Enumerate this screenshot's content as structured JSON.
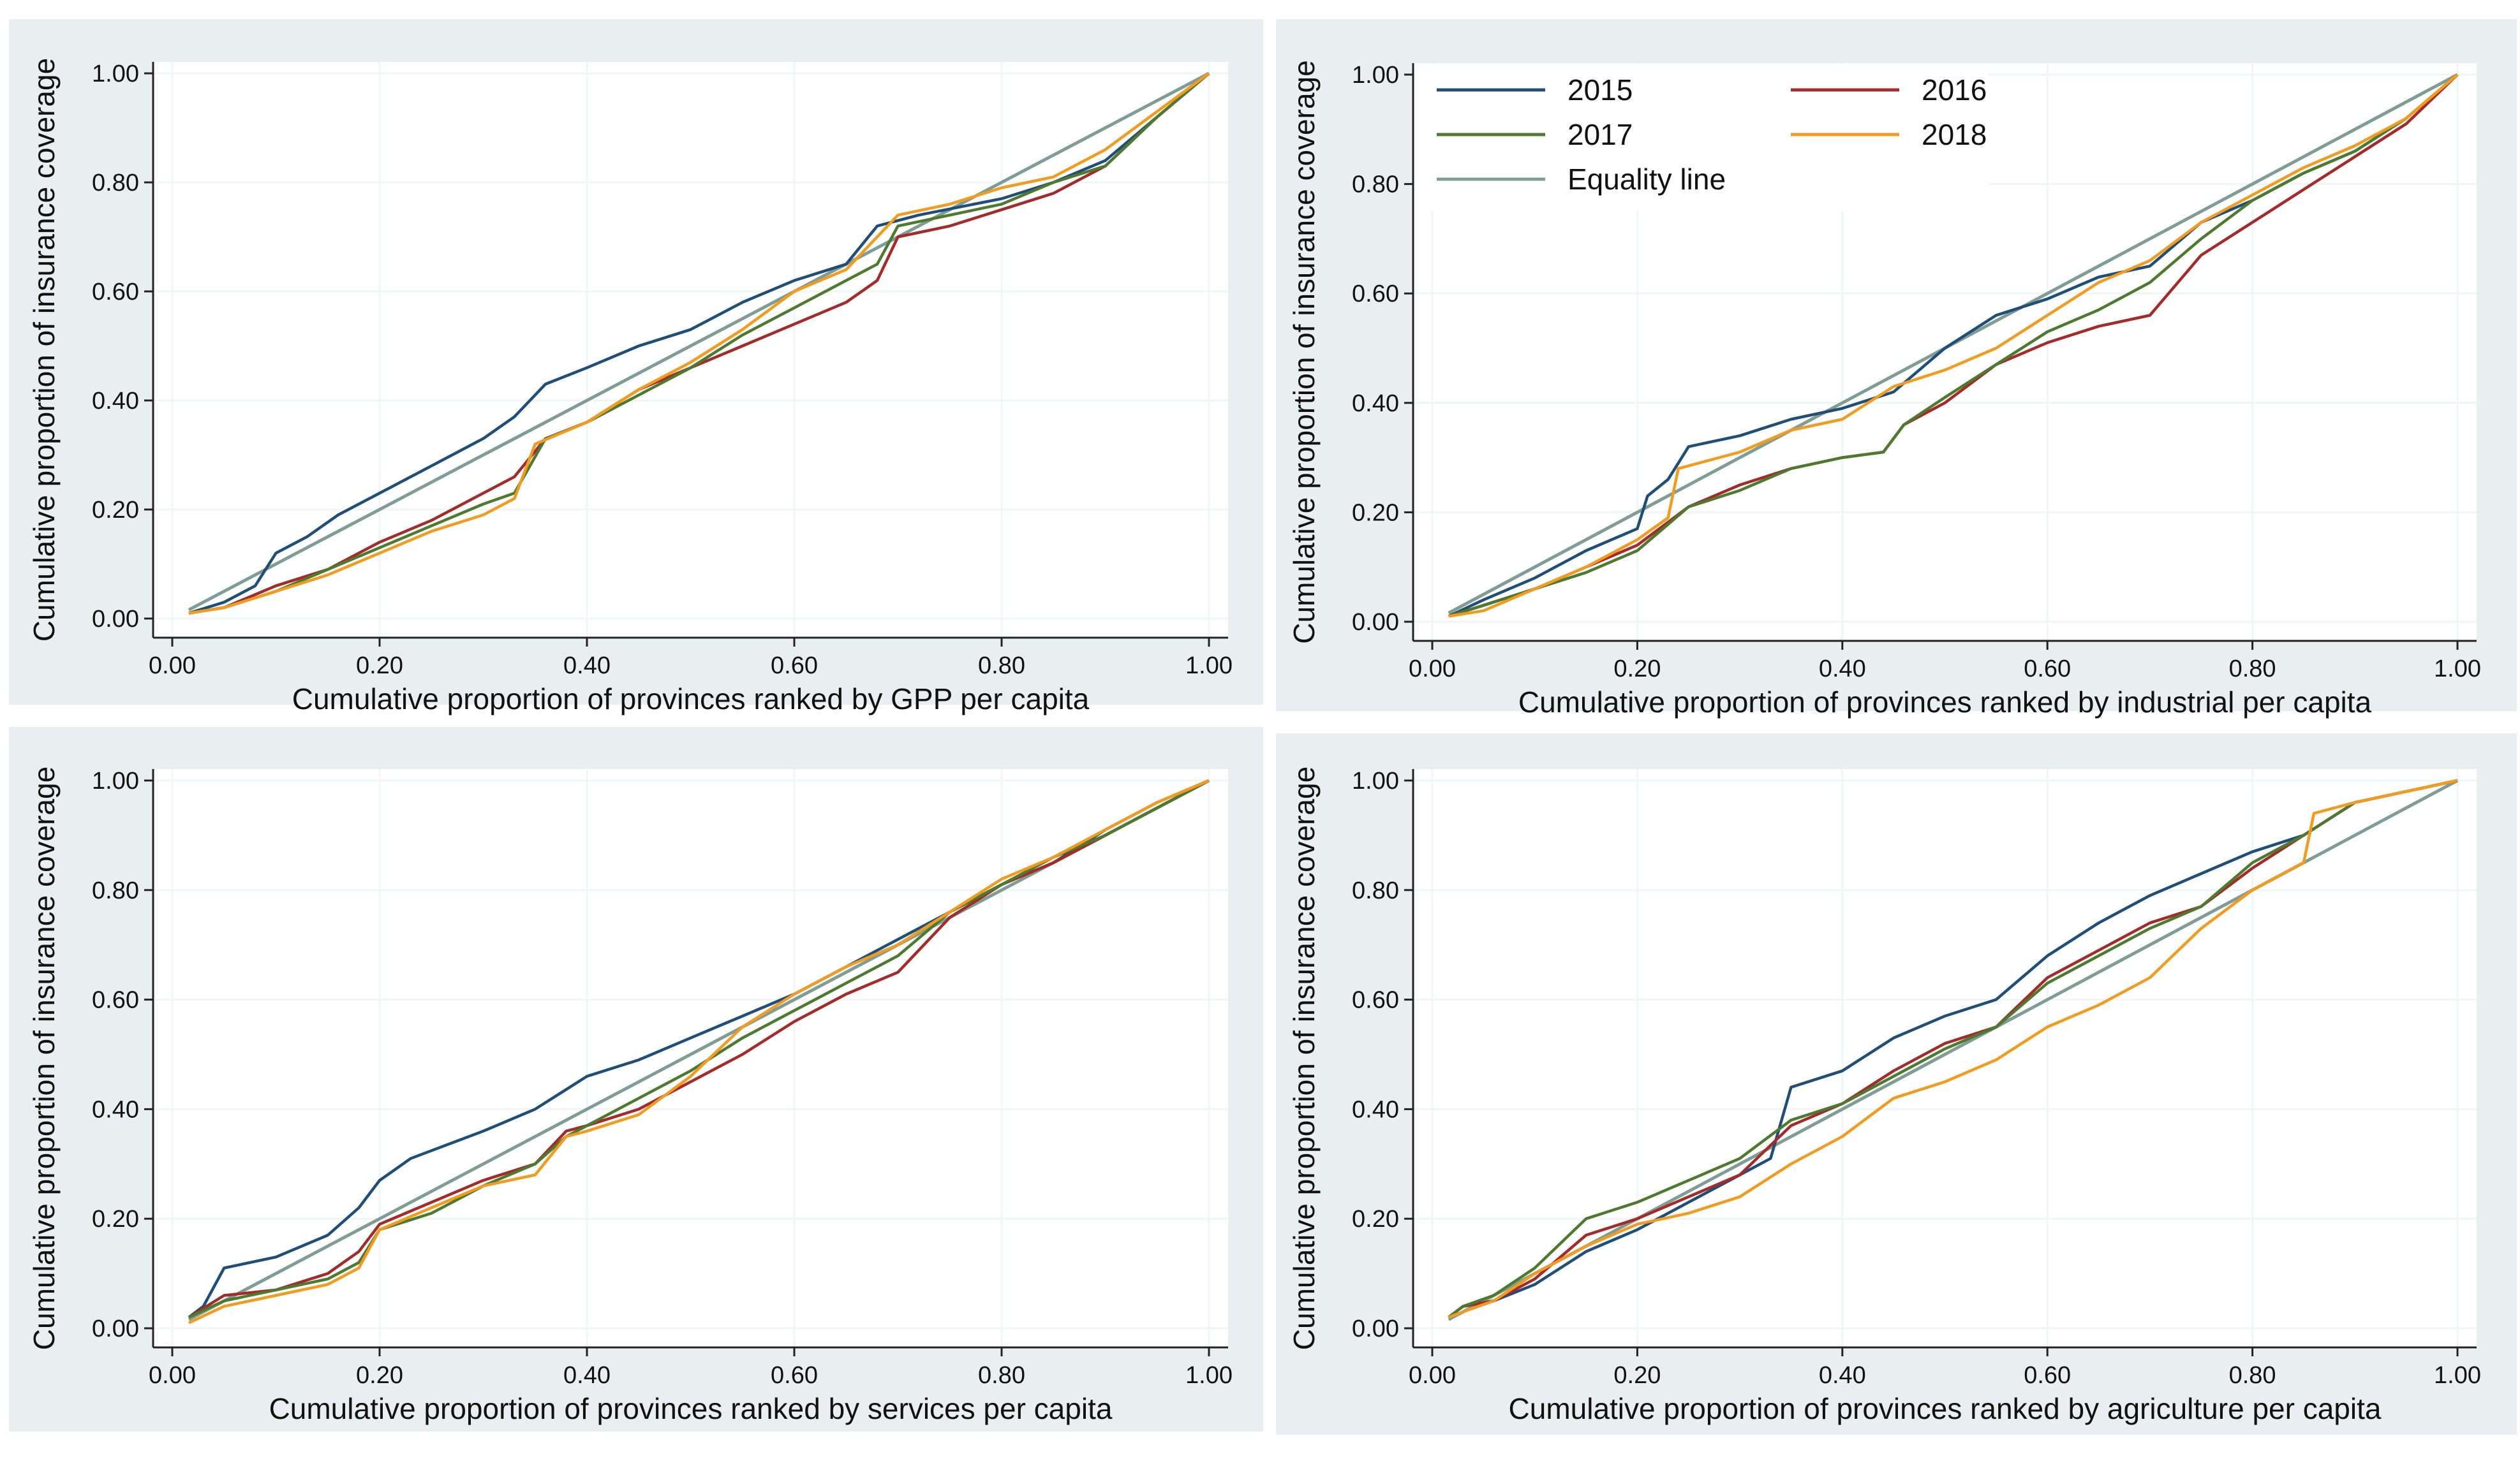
{
  "colors": {
    "y2015": "#1f4e79",
    "y2016": "#a52a2a",
    "y2017": "#4e7a2f",
    "y2018": "#f29b1f",
    "equality": "#7f9c95",
    "panel_bg": "#e9eef0",
    "grid": "#f2f5f6"
  },
  "legend": {
    "items": [
      {
        "key": "y2015",
        "label": "2015"
      },
      {
        "key": "y2016",
        "label": "2016"
      },
      {
        "key": "y2017",
        "label": "2017"
      },
      {
        "key": "y2018",
        "label": "2018"
      },
      {
        "key": "equality",
        "label": "Equality line"
      }
    ]
  },
  "chart_data": [
    {
      "type": "line",
      "id": "gpp",
      "xlabel": "Cumulative proportion of provinces ranked by GPP per capita",
      "ylabel": "Cumulative proportion of insurance coverage",
      "xlim": [
        0,
        1
      ],
      "ylim": [
        0,
        1
      ],
      "ticks": [
        0.0,
        0.2,
        0.4,
        0.6,
        0.8,
        1.0
      ],
      "tick_labels": [
        "0.00",
        "0.20",
        "0.40",
        "0.60",
        "0.80",
        "1.00"
      ],
      "grid": true,
      "series": [
        {
          "name": "2015",
          "key": "y2015",
          "x": [
            0.016,
            0.05,
            0.08,
            0.1,
            0.13,
            0.16,
            0.2,
            0.25,
            0.3,
            0.33,
            0.36,
            0.4,
            0.45,
            0.5,
            0.55,
            0.6,
            0.65,
            0.68,
            0.72,
            0.8,
            0.85,
            0.9,
            0.95,
            1.0
          ],
          "y": [
            0.01,
            0.03,
            0.06,
            0.12,
            0.15,
            0.19,
            0.23,
            0.28,
            0.33,
            0.37,
            0.43,
            0.46,
            0.5,
            0.53,
            0.58,
            0.62,
            0.65,
            0.72,
            0.74,
            0.77,
            0.8,
            0.84,
            0.92,
            1.0
          ]
        },
        {
          "name": "2016",
          "key": "y2016",
          "x": [
            0.016,
            0.05,
            0.1,
            0.15,
            0.2,
            0.25,
            0.3,
            0.33,
            0.36,
            0.4,
            0.45,
            0.5,
            0.55,
            0.6,
            0.65,
            0.68,
            0.7,
            0.75,
            0.8,
            0.85,
            0.9,
            0.95,
            1.0
          ],
          "y": [
            0.01,
            0.02,
            0.06,
            0.09,
            0.14,
            0.18,
            0.23,
            0.26,
            0.33,
            0.36,
            0.42,
            0.46,
            0.5,
            0.54,
            0.58,
            0.62,
            0.7,
            0.72,
            0.75,
            0.78,
            0.83,
            0.92,
            1.0
          ]
        },
        {
          "name": "2017",
          "key": "y2017",
          "x": [
            0.016,
            0.05,
            0.1,
            0.15,
            0.2,
            0.25,
            0.3,
            0.33,
            0.36,
            0.4,
            0.45,
            0.5,
            0.55,
            0.6,
            0.65,
            0.68,
            0.7,
            0.75,
            0.8,
            0.85,
            0.9,
            0.95,
            1.0
          ],
          "y": [
            0.01,
            0.02,
            0.05,
            0.09,
            0.13,
            0.17,
            0.21,
            0.23,
            0.33,
            0.36,
            0.41,
            0.46,
            0.52,
            0.57,
            0.62,
            0.65,
            0.72,
            0.74,
            0.76,
            0.8,
            0.83,
            0.92,
            1.0
          ]
        },
        {
          "name": "2018",
          "key": "y2018",
          "x": [
            0.016,
            0.05,
            0.1,
            0.15,
            0.2,
            0.25,
            0.3,
            0.33,
            0.35,
            0.4,
            0.45,
            0.5,
            0.55,
            0.6,
            0.65,
            0.7,
            0.75,
            0.8,
            0.85,
            0.9,
            0.95,
            1.0
          ],
          "y": [
            0.01,
            0.02,
            0.05,
            0.08,
            0.12,
            0.16,
            0.19,
            0.22,
            0.32,
            0.36,
            0.42,
            0.47,
            0.53,
            0.6,
            0.64,
            0.74,
            0.76,
            0.79,
            0.81,
            0.86,
            0.93,
            1.0
          ]
        },
        {
          "name": "Equality line",
          "key": "equality",
          "x": [
            0.016,
            1.0
          ],
          "y": [
            0.016,
            1.0
          ]
        }
      ]
    },
    {
      "type": "line",
      "id": "industrial",
      "xlabel": "Cumulative proportion of provinces ranked by industrial per capita",
      "ylabel": "Cumulative proportion of insurance coverage",
      "xlim": [
        0,
        1
      ],
      "ylim": [
        0,
        1
      ],
      "ticks": [
        0.0,
        0.2,
        0.4,
        0.6,
        0.8,
        1.0
      ],
      "tick_labels": [
        "0.00",
        "0.20",
        "0.40",
        "0.60",
        "0.80",
        "1.00"
      ],
      "grid": true,
      "legend_position": "top-left",
      "series": [
        {
          "name": "2015",
          "key": "y2015",
          "x": [
            0.016,
            0.05,
            0.1,
            0.15,
            0.2,
            0.21,
            0.23,
            0.25,
            0.3,
            0.35,
            0.4,
            0.45,
            0.5,
            0.55,
            0.6,
            0.65,
            0.7,
            0.75,
            0.8,
            0.85,
            0.9,
            0.95,
            1.0
          ],
          "y": [
            0.01,
            0.04,
            0.08,
            0.13,
            0.17,
            0.23,
            0.26,
            0.32,
            0.34,
            0.37,
            0.39,
            0.42,
            0.5,
            0.56,
            0.59,
            0.63,
            0.65,
            0.73,
            0.77,
            0.82,
            0.86,
            0.92,
            1.0
          ]
        },
        {
          "name": "2016",
          "key": "y2016",
          "x": [
            0.016,
            0.05,
            0.1,
            0.15,
            0.2,
            0.25,
            0.3,
            0.35,
            0.4,
            0.44,
            0.46,
            0.5,
            0.55,
            0.6,
            0.65,
            0.7,
            0.75,
            0.8,
            0.85,
            0.9,
            0.95,
            1.0
          ],
          "y": [
            0.01,
            0.03,
            0.06,
            0.1,
            0.14,
            0.21,
            0.25,
            0.28,
            0.3,
            0.31,
            0.36,
            0.4,
            0.47,
            0.51,
            0.54,
            0.56,
            0.67,
            0.73,
            0.79,
            0.85,
            0.91,
            1.0
          ]
        },
        {
          "name": "2017",
          "key": "y2017",
          "x": [
            0.016,
            0.05,
            0.1,
            0.15,
            0.2,
            0.25,
            0.3,
            0.35,
            0.4,
            0.44,
            0.46,
            0.5,
            0.55,
            0.6,
            0.65,
            0.7,
            0.75,
            0.8,
            0.85,
            0.9,
            0.95,
            1.0
          ],
          "y": [
            0.01,
            0.03,
            0.06,
            0.09,
            0.13,
            0.21,
            0.24,
            0.28,
            0.3,
            0.31,
            0.36,
            0.41,
            0.47,
            0.53,
            0.57,
            0.62,
            0.7,
            0.77,
            0.82,
            0.86,
            0.92,
            1.0
          ]
        },
        {
          "name": "2018",
          "key": "y2018",
          "x": [
            0.016,
            0.05,
            0.1,
            0.15,
            0.2,
            0.23,
            0.24,
            0.3,
            0.35,
            0.4,
            0.45,
            0.5,
            0.55,
            0.6,
            0.65,
            0.7,
            0.75,
            0.8,
            0.85,
            0.9,
            0.95,
            1.0
          ],
          "y": [
            0.01,
            0.02,
            0.06,
            0.1,
            0.15,
            0.19,
            0.28,
            0.31,
            0.35,
            0.37,
            0.43,
            0.46,
            0.5,
            0.56,
            0.62,
            0.66,
            0.73,
            0.78,
            0.83,
            0.87,
            0.92,
            1.0
          ]
        },
        {
          "name": "Equality line",
          "key": "equality",
          "x": [
            0.016,
            1.0
          ],
          "y": [
            0.016,
            1.0
          ]
        }
      ]
    },
    {
      "type": "line",
      "id": "services",
      "xlabel": "Cumulative proportion of provinces ranked by services per capita",
      "ylabel": "Cumulative proportion of insurance coverage",
      "xlim": [
        0,
        1
      ],
      "ylim": [
        0,
        1
      ],
      "ticks": [
        0.0,
        0.2,
        0.4,
        0.6,
        0.8,
        1.0
      ],
      "tick_labels": [
        "0.00",
        "0.20",
        "0.40",
        "0.60",
        "0.80",
        "1.00"
      ],
      "grid": true,
      "series": [
        {
          "name": "2015",
          "key": "y2015",
          "x": [
            0.016,
            0.03,
            0.05,
            0.1,
            0.15,
            0.18,
            0.2,
            0.23,
            0.3,
            0.35,
            0.4,
            0.45,
            0.5,
            0.55,
            0.6,
            0.65,
            0.7,
            0.75,
            0.8,
            0.85,
            0.9,
            0.95,
            1.0
          ],
          "y": [
            0.02,
            0.04,
            0.11,
            0.13,
            0.17,
            0.22,
            0.27,
            0.31,
            0.36,
            0.4,
            0.46,
            0.49,
            0.53,
            0.57,
            0.61,
            0.66,
            0.71,
            0.76,
            0.81,
            0.85,
            0.91,
            0.96,
            1.0
          ]
        },
        {
          "name": "2016",
          "key": "y2016",
          "x": [
            0.016,
            0.05,
            0.1,
            0.15,
            0.18,
            0.2,
            0.25,
            0.3,
            0.35,
            0.38,
            0.4,
            0.45,
            0.5,
            0.55,
            0.6,
            0.65,
            0.7,
            0.75,
            0.8,
            0.85,
            0.9,
            0.95,
            1.0
          ],
          "y": [
            0.02,
            0.06,
            0.07,
            0.1,
            0.14,
            0.19,
            0.23,
            0.27,
            0.3,
            0.36,
            0.37,
            0.4,
            0.45,
            0.5,
            0.56,
            0.61,
            0.65,
            0.75,
            0.81,
            0.85,
            0.9,
            0.95,
            1.0
          ]
        },
        {
          "name": "2017",
          "key": "y2017",
          "x": [
            0.016,
            0.05,
            0.1,
            0.15,
            0.18,
            0.2,
            0.25,
            0.3,
            0.35,
            0.38,
            0.4,
            0.45,
            0.5,
            0.55,
            0.6,
            0.65,
            0.7,
            0.75,
            0.8,
            0.85,
            0.9,
            0.95,
            1.0
          ],
          "y": [
            0.02,
            0.05,
            0.07,
            0.09,
            0.12,
            0.18,
            0.21,
            0.26,
            0.3,
            0.35,
            0.37,
            0.42,
            0.47,
            0.53,
            0.58,
            0.63,
            0.68,
            0.76,
            0.81,
            0.86,
            0.9,
            0.95,
            1.0
          ]
        },
        {
          "name": "2018",
          "key": "y2018",
          "x": [
            0.016,
            0.05,
            0.1,
            0.15,
            0.18,
            0.2,
            0.25,
            0.3,
            0.35,
            0.38,
            0.4,
            0.45,
            0.5,
            0.55,
            0.6,
            0.65,
            0.7,
            0.75,
            0.8,
            0.85,
            0.9,
            0.95,
            1.0
          ],
          "y": [
            0.01,
            0.04,
            0.06,
            0.08,
            0.11,
            0.18,
            0.22,
            0.26,
            0.28,
            0.35,
            0.36,
            0.39,
            0.46,
            0.55,
            0.61,
            0.66,
            0.7,
            0.76,
            0.82,
            0.86,
            0.91,
            0.96,
            1.0
          ]
        },
        {
          "name": "Equality line",
          "key": "equality",
          "x": [
            0.016,
            1.0
          ],
          "y": [
            0.016,
            1.0
          ]
        }
      ]
    },
    {
      "type": "line",
      "id": "agriculture",
      "xlabel": "Cumulative proportion of provinces ranked by agriculture per capita",
      "ylabel": "Cumulative proportion of insurance coverage",
      "xlim": [
        0,
        1
      ],
      "ylim": [
        0,
        1
      ],
      "ticks": [
        0.0,
        0.2,
        0.4,
        0.6,
        0.8,
        1.0
      ],
      "tick_labels": [
        "0.00",
        "0.20",
        "0.40",
        "0.60",
        "0.80",
        "1.00"
      ],
      "grid": true,
      "series": [
        {
          "name": "2015",
          "key": "y2015",
          "x": [
            0.016,
            0.03,
            0.06,
            0.1,
            0.15,
            0.2,
            0.25,
            0.3,
            0.33,
            0.35,
            0.4,
            0.45,
            0.5,
            0.55,
            0.6,
            0.65,
            0.7,
            0.75,
            0.8,
            0.85,
            0.9,
            0.95,
            1.0
          ],
          "y": [
            0.02,
            0.04,
            0.05,
            0.08,
            0.14,
            0.18,
            0.23,
            0.28,
            0.31,
            0.44,
            0.47,
            0.53,
            0.57,
            0.6,
            0.68,
            0.74,
            0.79,
            0.83,
            0.87,
            0.9,
            0.96,
            0.98,
            1.0
          ]
        },
        {
          "name": "2016",
          "key": "y2016",
          "x": [
            0.016,
            0.03,
            0.06,
            0.1,
            0.15,
            0.2,
            0.25,
            0.3,
            0.35,
            0.4,
            0.45,
            0.5,
            0.55,
            0.6,
            0.65,
            0.7,
            0.75,
            0.8,
            0.85,
            0.9,
            0.95,
            1.0
          ],
          "y": [
            0.02,
            0.04,
            0.05,
            0.09,
            0.17,
            0.2,
            0.24,
            0.28,
            0.37,
            0.41,
            0.47,
            0.52,
            0.55,
            0.64,
            0.69,
            0.74,
            0.77,
            0.84,
            0.9,
            0.96,
            0.98,
            1.0
          ]
        },
        {
          "name": "2017",
          "key": "y2017",
          "x": [
            0.016,
            0.03,
            0.06,
            0.1,
            0.15,
            0.2,
            0.25,
            0.3,
            0.35,
            0.4,
            0.45,
            0.5,
            0.55,
            0.6,
            0.65,
            0.7,
            0.75,
            0.8,
            0.85,
            0.9,
            0.95,
            1.0
          ],
          "y": [
            0.02,
            0.04,
            0.06,
            0.11,
            0.2,
            0.23,
            0.27,
            0.31,
            0.38,
            0.41,
            0.46,
            0.51,
            0.55,
            0.63,
            0.68,
            0.73,
            0.77,
            0.85,
            0.9,
            0.96,
            0.98,
            1.0
          ]
        },
        {
          "name": "2018",
          "key": "y2018",
          "x": [
            0.016,
            0.03,
            0.06,
            0.1,
            0.15,
            0.2,
            0.25,
            0.3,
            0.35,
            0.4,
            0.45,
            0.5,
            0.55,
            0.6,
            0.65,
            0.7,
            0.75,
            0.8,
            0.85,
            0.86,
            0.9,
            0.95,
            1.0
          ],
          "y": [
            0.02,
            0.03,
            0.05,
            0.1,
            0.15,
            0.19,
            0.21,
            0.24,
            0.3,
            0.35,
            0.42,
            0.45,
            0.49,
            0.55,
            0.59,
            0.64,
            0.73,
            0.8,
            0.85,
            0.94,
            0.96,
            0.98,
            1.0
          ]
        },
        {
          "name": "Equality line",
          "key": "equality",
          "x": [
            0.016,
            1.0
          ],
          "y": [
            0.016,
            1.0
          ]
        }
      ]
    }
  ]
}
